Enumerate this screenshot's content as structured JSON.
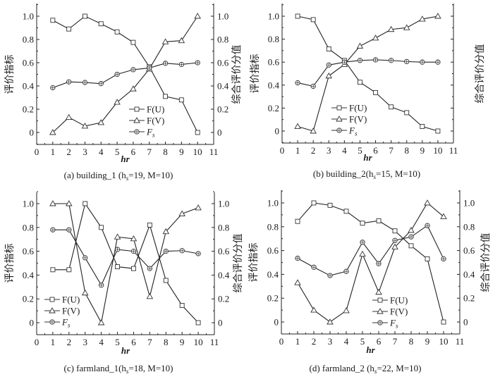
{
  "chart_data": [
    {
      "type": "line",
      "id": "a",
      "caption": "(a) building_1 (h",
      "caption_sub": "s",
      "caption_rest": "=19, M=10)",
      "xlabel": "hr",
      "ylabel": "评价指标",
      "ylabel_right": "综合评价分值",
      "x_ticks": [
        "0",
        "1",
        "2",
        "3",
        "4",
        "5",
        "6",
        "7",
        "8",
        "9",
        "10",
        "11"
      ],
      "y_ticks": [
        "0",
        "0.2",
        "0.4",
        "0.6",
        "0.8",
        "1.0"
      ],
      "y_ticks_right": [
        "0",
        "0.2",
        "0.4",
        "0.6",
        "0.8",
        "1.0"
      ],
      "xlim": [
        0,
        11
      ],
      "ylim": [
        -0.1,
        1.1
      ],
      "legend_position": "bottom-center",
      "x": [
        1,
        2,
        3,
        4,
        5,
        6,
        7,
        8,
        9,
        10
      ],
      "series": [
        {
          "name": "F(U)",
          "marker": "square",
          "values": [
            0.965,
            0.89,
            1.0,
            0.935,
            0.865,
            0.775,
            0.565,
            0.31,
            0.28,
            0.0
          ]
        },
        {
          "name": "F(V)",
          "marker": "triangle",
          "values": [
            0.0,
            0.13,
            0.055,
            0.085,
            0.26,
            0.375,
            0.545,
            0.78,
            0.79,
            1.0
          ]
        },
        {
          "name": "F_s",
          "marker": "circle-plus",
          "values": [
            0.385,
            0.435,
            0.43,
            0.42,
            0.5,
            0.54,
            0.555,
            0.595,
            0.585,
            0.6
          ]
        }
      ]
    },
    {
      "type": "line",
      "id": "b",
      "caption": "(b) building_2(h",
      "caption_sub": "s",
      "caption_rest": "=15, M=10)",
      "xlabel": "hr",
      "ylabel": "评价指标",
      "ylabel_right": "综合评价分值",
      "x_ticks": [
        "0",
        "1",
        "2",
        "3",
        "4",
        "5",
        "6",
        "7",
        "8",
        "9",
        "10",
        "11"
      ],
      "y_ticks": [
        "0",
        "0.2",
        "0.4",
        "0.6",
        "0.8",
        "1.0"
      ],
      "y_ticks_right": [],
      "xlim": [
        0,
        11
      ],
      "ylim": [
        -0.1,
        1.1
      ],
      "legend_position": "bottom-center",
      "x": [
        1,
        2,
        3,
        4,
        5,
        6,
        7,
        8,
        9,
        10
      ],
      "series": [
        {
          "name": "F(U)",
          "marker": "square",
          "values": [
            1.0,
            0.97,
            0.715,
            0.615,
            0.425,
            0.335,
            0.21,
            0.16,
            0.04,
            0.0
          ]
        },
        {
          "name": "F(V)",
          "marker": "triangle",
          "values": [
            0.04,
            0.0,
            0.48,
            0.58,
            0.74,
            0.81,
            0.885,
            0.9,
            0.975,
            1.0
          ]
        },
        {
          "name": "F_s",
          "marker": "circle-plus",
          "values": [
            0.42,
            0.39,
            0.575,
            0.6,
            0.615,
            0.62,
            0.615,
            0.605,
            0.6,
            0.6
          ]
        }
      ]
    },
    {
      "type": "line",
      "id": "c",
      "caption": "(c) farmland_1(h",
      "caption_sub": "s",
      "caption_rest": "=18, M=10)",
      "xlabel": "hr",
      "ylabel": "评价指标",
      "ylabel_right": "综合评价分值",
      "x_ticks": [
        "0",
        "1",
        "2",
        "3",
        "4",
        "5",
        "6",
        "7",
        "8",
        "9",
        "10",
        "11"
      ],
      "y_ticks": [
        "0",
        "0.2",
        "0.4",
        "0.6",
        "0.8",
        "1.0"
      ],
      "y_ticks_right": [
        "0",
        "0.2",
        "0.4",
        "0.6",
        "0.8",
        "1.0"
      ],
      "xlim": [
        0,
        11
      ],
      "ylim": [
        -0.1,
        1.1
      ],
      "legend_position": "bottom-left",
      "x": [
        1,
        2,
        3,
        4,
        5,
        6,
        7,
        8,
        9,
        10
      ],
      "series": [
        {
          "name": "F(U)",
          "marker": "square",
          "values": [
            0.445,
            0.445,
            1.0,
            0.8,
            0.47,
            0.455,
            0.82,
            0.355,
            0.145,
            0.0
          ]
        },
        {
          "name": "F(V)",
          "marker": "triangle",
          "values": [
            1.0,
            1.0,
            0.25,
            0.0,
            0.72,
            0.705,
            0.22,
            0.765,
            0.915,
            0.965
          ]
        },
        {
          "name": "F_s",
          "marker": "circle-plus",
          "values": [
            0.78,
            0.78,
            0.545,
            0.315,
            0.615,
            0.6,
            0.455,
            0.6,
            0.605,
            0.58
          ]
        }
      ]
    },
    {
      "type": "line",
      "id": "d",
      "caption": "(d) farmland_2 (h",
      "caption_sub": "s",
      "caption_rest": "=22, M=10)",
      "xlabel": "hr",
      "ylabel": "评价指标",
      "ylabel_right": "综合评价分值",
      "x_ticks": [
        "0",
        "1",
        "2",
        "3",
        "4",
        "5",
        "6",
        "7",
        "8",
        "9",
        "10",
        "11"
      ],
      "y_ticks": [
        "0",
        "0.2",
        "0.4",
        "0.6",
        "0.8",
        "1.0"
      ],
      "y_ticks_right": [
        "0",
        "0.2",
        "0.4",
        "0.6",
        "0.8",
        "1.0"
      ],
      "xlim": [
        0,
        11
      ],
      "ylim": [
        -0.1,
        1.1
      ],
      "legend_position": "bottom-center",
      "x": [
        1,
        2,
        3,
        4,
        5,
        6,
        7,
        8,
        9,
        10
      ],
      "series": [
        {
          "name": "F(U)",
          "marker": "square",
          "values": [
            0.845,
            1.0,
            0.98,
            0.93,
            0.83,
            0.85,
            0.765,
            0.64,
            0.53,
            0.0
          ]
        },
        {
          "name": "F(V)",
          "marker": "triangle",
          "values": [
            0.33,
            0.1,
            0.0,
            0.095,
            0.57,
            0.25,
            0.63,
            0.77,
            1.0,
            0.885
          ]
        },
        {
          "name": "F_s",
          "marker": "circle-plus",
          "values": [
            0.535,
            0.46,
            0.39,
            0.425,
            0.67,
            0.49,
            0.685,
            0.715,
            0.81,
            0.53
          ]
        }
      ]
    }
  ]
}
